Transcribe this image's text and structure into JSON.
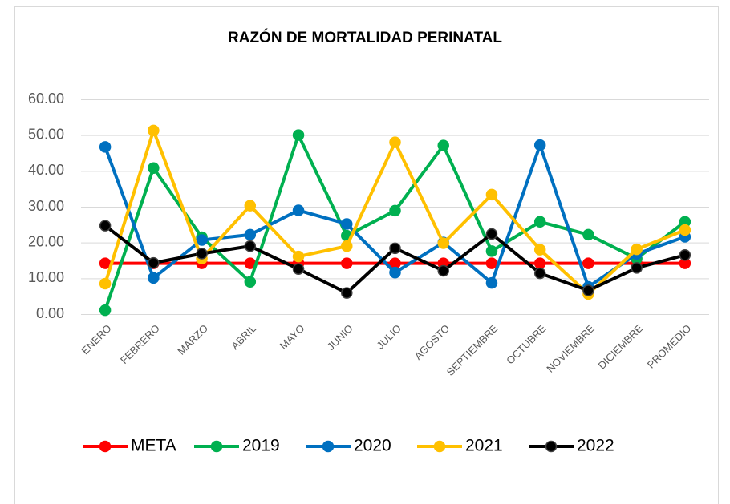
{
  "chart_data": {
    "type": "line",
    "title": "RAZÓN DE MORTALIDAD PERINATAL",
    "categories": [
      "ENERO",
      "FEBRERO",
      "MARZO",
      "ABRIL",
      "MAYO",
      "JUNIO",
      "JULIO",
      "AGOSTO",
      "SEPTIEMBRE",
      "OCTUBRE",
      "NOVIEMBRE",
      "DICIEMBRE",
      "PROMEDIO"
    ],
    "series": [
      {
        "name": "META",
        "color": "#ff0000",
        "values": [
          14.2,
          14.2,
          14.2,
          14.2,
          14.2,
          14.2,
          14.2,
          14.2,
          14.2,
          14.2,
          14.2,
          14.2,
          14.2
        ]
      },
      {
        "name": "2019",
        "color": "#00b050",
        "values": [
          1.1,
          40.8,
          21.5,
          9.0,
          50.0,
          21.9,
          28.9,
          47.1,
          17.6,
          25.8,
          22.2,
          15.5,
          25.8
        ]
      },
      {
        "name": "2020",
        "color": "#0070c0",
        "values": [
          46.7,
          10.1,
          20.7,
          22.2,
          29.0,
          25.2,
          11.6,
          20.0,
          8.7,
          47.2,
          7.6,
          16.8,
          21.6
        ]
      },
      {
        "name": "2021",
        "color": "#ffc000",
        "values": [
          8.5,
          51.3,
          15.5,
          30.3,
          16.1,
          19.0,
          48.0,
          19.8,
          33.4,
          18.0,
          5.6,
          18.1,
          23.5
        ]
      },
      {
        "name": "2022",
        "color": "#000000",
        "values": [
          24.7,
          14.3,
          16.9,
          19.0,
          12.6,
          5.9,
          18.4,
          12.1,
          22.4,
          11.4,
          6.6,
          12.9,
          16.5
        ]
      }
    ],
    "ylim": [
      0,
      60
    ],
    "yticks": [
      {
        "value": 0,
        "label": "0.00"
      },
      {
        "value": 10,
        "label": "10.00"
      },
      {
        "value": 20,
        "label": "20.00"
      },
      {
        "value": 30,
        "label": "30.00"
      },
      {
        "value": 40,
        "label": "40.00"
      },
      {
        "value": 50,
        "label": "50.00"
      },
      {
        "value": 60,
        "label": "60.00"
      }
    ],
    "grid": true,
    "legend": "bottom"
  }
}
